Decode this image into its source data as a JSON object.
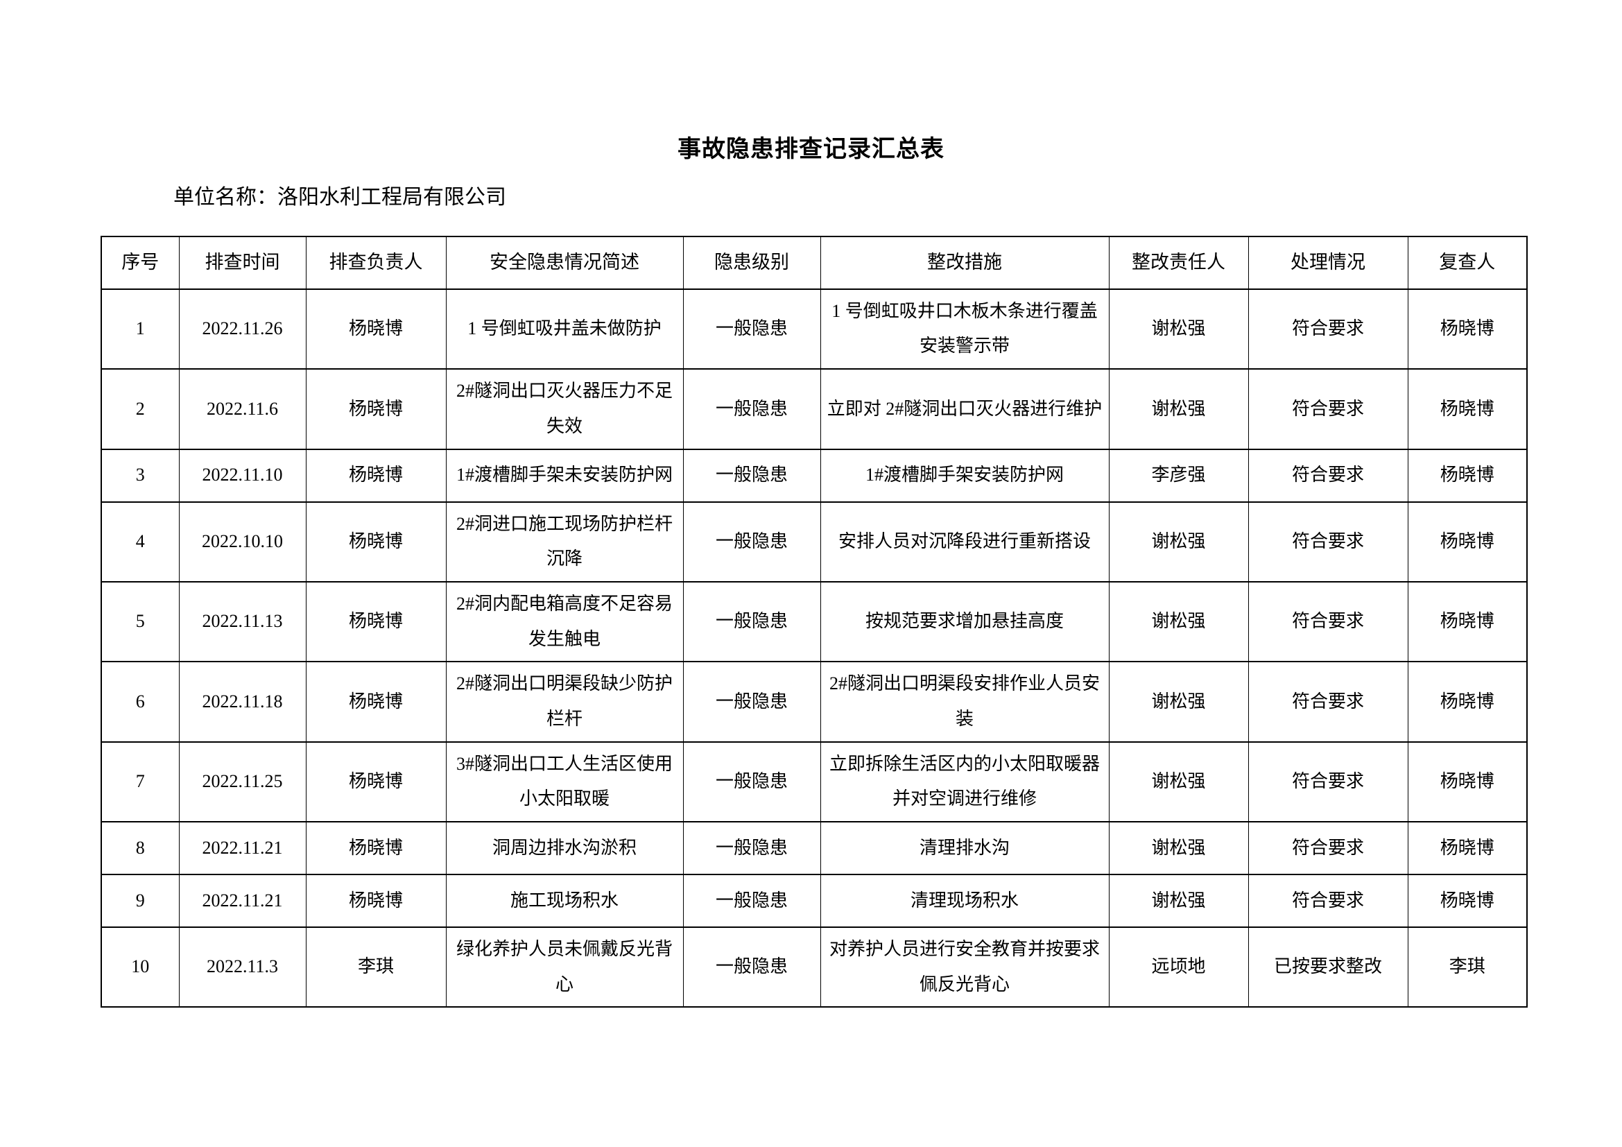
{
  "page": {
    "title": "事故隐患排查记录汇总表",
    "unit_line": "单位名称：洛阳水利工程局有限公司"
  },
  "table": {
    "headers": [
      "序号",
      "排查时间",
      "排查负责人",
      "安全隐患情况简述",
      "隐患级别",
      "整改措施",
      "整改责任人",
      "处理情况",
      "复查人"
    ],
    "rows": [
      [
        "1",
        "2022.11.26",
        "杨晓博",
        "1 号倒虹吸井盖未做防护",
        "一般隐患",
        "1 号倒虹吸井口木板木条进行覆盖安装警示带",
        "谢松强",
        "符合要求",
        "杨晓博"
      ],
      [
        "2",
        "2022.11.6",
        "杨晓博",
        "2#隧洞出口灭火器压力不足失效",
        "一般隐患",
        "立即对 2#隧洞出口灭火器进行维护",
        "谢松强",
        "符合要求",
        "杨晓博"
      ],
      [
        "3",
        "2022.11.10",
        "杨晓博",
        "1#渡槽脚手架未安装防护网",
        "一般隐患",
        "1#渡槽脚手架安装防护网",
        "李彦强",
        "符合要求",
        "杨晓博"
      ],
      [
        "4",
        "2022.10.10",
        "杨晓博",
        "2#洞进口施工现场防护栏杆沉降",
        "一般隐患",
        "安排人员对沉降段进行重新搭设",
        "谢松强",
        "符合要求",
        "杨晓博"
      ],
      [
        "5",
        "2022.11.13",
        "杨晓博",
        "2#洞内配电箱高度不足容易发生触电",
        "一般隐患",
        "按规范要求增加悬挂高度",
        "谢松强",
        "符合要求",
        "杨晓博"
      ],
      [
        "6",
        "2022.11.18",
        "杨晓博",
        "2#隧洞出口明渠段缺少防护栏杆",
        "一般隐患",
        "2#隧洞出口明渠段安排作业人员安装",
        "谢松强",
        "符合要求",
        "杨晓博"
      ],
      [
        "7",
        "2022.11.25",
        "杨晓博",
        "3#隧洞出口工人生活区使用小太阳取暖",
        "一般隐患",
        "立即拆除生活区内的小太阳取暖器并对空调进行维修",
        "谢松强",
        "符合要求",
        "杨晓博"
      ],
      [
        "8",
        "2022.11.21",
        "杨晓博",
        "洞周边排水沟淤积",
        "一般隐患",
        "清理排水沟",
        "谢松强",
        "符合要求",
        "杨晓博"
      ],
      [
        "9",
        "2022.11.21",
        "杨晓博",
        "施工现场积水",
        "一般隐患",
        "清理现场积水",
        "谢松强",
        "符合要求",
        "杨晓博"
      ],
      [
        "10",
        "2022.11.3",
        "李琪",
        "绿化养护人员未佩戴反光背心",
        "一般隐患",
        "对养护人员进行安全教育并按要求佩反光背心",
        "远顷地",
        "已按要求整改",
        "李琪"
      ]
    ]
  }
}
